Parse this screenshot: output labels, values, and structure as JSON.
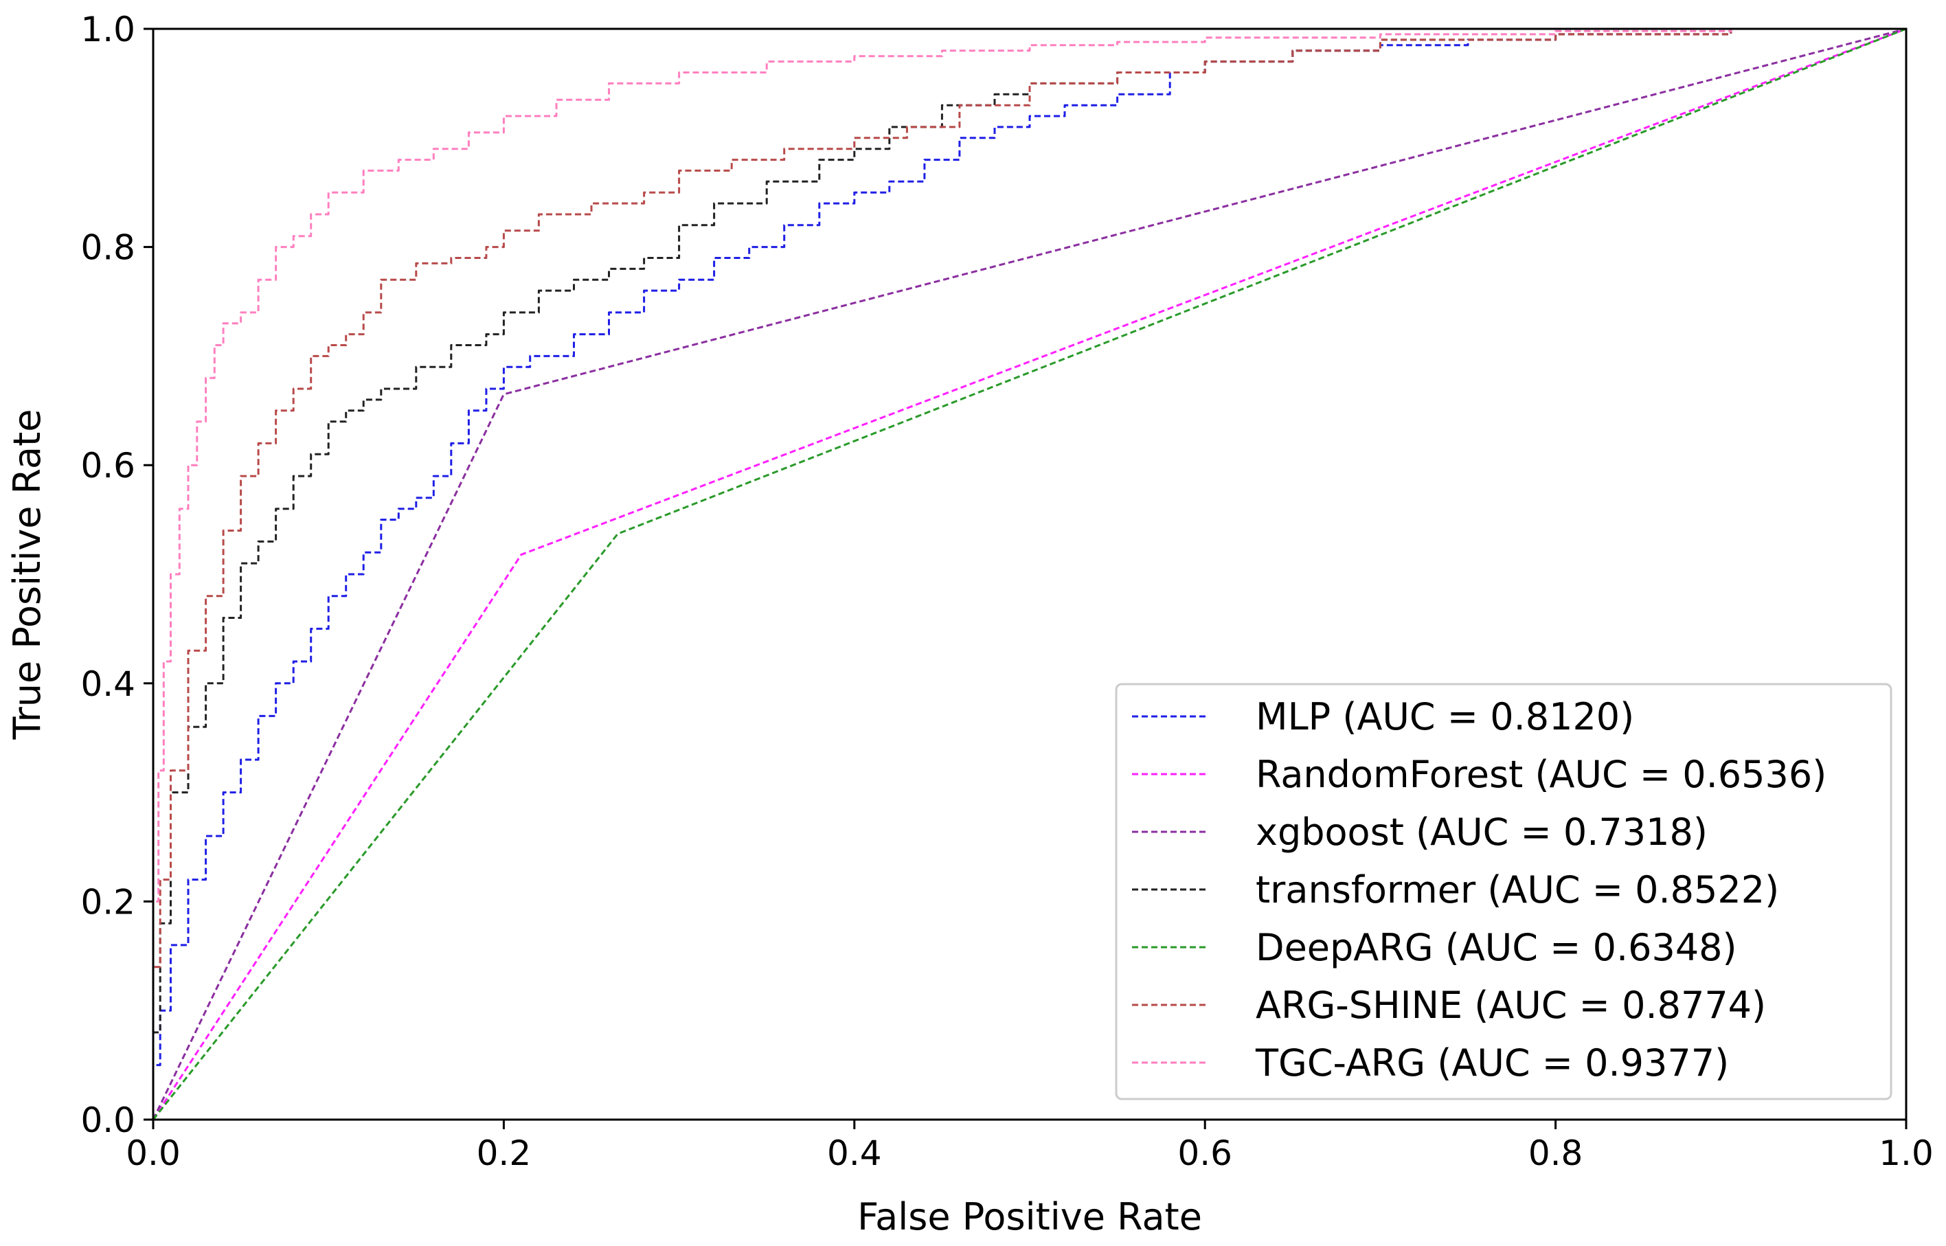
{
  "chart_data": {
    "type": "line",
    "title": "",
    "xlabel": "False Positive Rate",
    "ylabel": "True Positive Rate",
    "xlim": [
      0.0,
      1.0
    ],
    "ylim": [
      0.0,
      1.0
    ],
    "xticks": [
      0.0,
      0.2,
      0.4,
      0.6,
      0.8,
      1.0
    ],
    "yticks": [
      0.0,
      0.2,
      0.4,
      0.6,
      0.8,
      1.0
    ],
    "xtick_labels": [
      "0.0",
      "0.2",
      "0.4",
      "0.6",
      "0.8",
      "1.0"
    ],
    "ytick_labels": [
      "0.0",
      "0.2",
      "0.4",
      "0.6",
      "0.8",
      "1.0"
    ],
    "grid": false,
    "legend_position": "lower-right",
    "line_style": "dashed",
    "series": [
      {
        "name": "MLP",
        "label": "MLP (AUC  = 0.8120)",
        "auc": 0.812,
        "color": "#1f1fe6",
        "x": [
          0,
          0.004,
          0.01,
          0.02,
          0.03,
          0.04,
          0.05,
          0.06,
          0.07,
          0.08,
          0.09,
          0.1,
          0.11,
          0.12,
          0.13,
          0.14,
          0.15,
          0.16,
          0.17,
          0.18,
          0.19,
          0.2,
          0.215,
          0.24,
          0.26,
          0.28,
          0.3,
          0.32,
          0.34,
          0.36,
          0.38,
          0.4,
          0.42,
          0.44,
          0.46,
          0.48,
          0.5,
          0.52,
          0.55,
          0.58,
          0.6,
          0.65,
          0.7,
          0.75,
          0.8,
          0.9,
          1.0
        ],
        "y": [
          0,
          0.05,
          0.1,
          0.16,
          0.22,
          0.26,
          0.3,
          0.33,
          0.37,
          0.4,
          0.42,
          0.45,
          0.48,
          0.5,
          0.52,
          0.55,
          0.56,
          0.57,
          0.59,
          0.62,
          0.65,
          0.67,
          0.69,
          0.7,
          0.72,
          0.74,
          0.76,
          0.77,
          0.79,
          0.8,
          0.82,
          0.84,
          0.85,
          0.86,
          0.88,
          0.9,
          0.91,
          0.92,
          0.93,
          0.94,
          0.96,
          0.97,
          0.98,
          0.985,
          0.99,
          0.995,
          1.0
        ]
      },
      {
        "name": "RandomForest",
        "label": "RandomForest (AUC  = 0.6536)",
        "auc": 0.6536,
        "color": "#ff22ff",
        "x": [
          0,
          0.21,
          1.0
        ],
        "y": [
          0,
          0.518,
          1.0
        ]
      },
      {
        "name": "xgboost",
        "label": "xgboost (AUC  = 0.7318)",
        "auc": 0.7318,
        "color": "#8b2fa0",
        "x": [
          0,
          0.2,
          1.0
        ],
        "y": [
          0,
          0.665,
          1.0
        ]
      },
      {
        "name": "transformer",
        "label": "transformer (AUC  = 0.8522)",
        "auc": 0.8522,
        "color": "#222222",
        "x": [
          0,
          0.004,
          0.01,
          0.02,
          0.03,
          0.04,
          0.05,
          0.06,
          0.07,
          0.08,
          0.09,
          0.1,
          0.11,
          0.12,
          0.13,
          0.15,
          0.17,
          0.19,
          0.2,
          0.22,
          0.24,
          0.26,
          0.28,
          0.3,
          0.32,
          0.35,
          0.38,
          0.4,
          0.42,
          0.45,
          0.48,
          0.5,
          0.55,
          0.6,
          0.65,
          0.7,
          0.8,
          0.9,
          1.0
        ],
        "y": [
          0,
          0.08,
          0.18,
          0.3,
          0.36,
          0.4,
          0.46,
          0.51,
          0.53,
          0.56,
          0.59,
          0.61,
          0.64,
          0.65,
          0.66,
          0.67,
          0.69,
          0.71,
          0.72,
          0.74,
          0.76,
          0.77,
          0.78,
          0.79,
          0.82,
          0.84,
          0.86,
          0.88,
          0.89,
          0.91,
          0.93,
          0.94,
          0.95,
          0.96,
          0.97,
          0.98,
          0.99,
          0.995,
          1.0
        ]
      },
      {
        "name": "DeepARG",
        "label": "DeepARG (AUC  = 0.6348)",
        "auc": 0.6348,
        "color": "#2a9a2a",
        "x": [
          0,
          0.265,
          1.0
        ],
        "y": [
          0,
          0.537,
          1.0
        ]
      },
      {
        "name": "ARG-SHINE",
        "label": "ARG-SHINE (AUC  = 0.8774)",
        "auc": 0.8774,
        "color": "#b84a4a",
        "x": [
          0,
          0.004,
          0.01,
          0.02,
          0.03,
          0.04,
          0.05,
          0.06,
          0.07,
          0.08,
          0.09,
          0.1,
          0.11,
          0.12,
          0.13,
          0.15,
          0.17,
          0.19,
          0.2,
          0.22,
          0.25,
          0.28,
          0.3,
          0.33,
          0.36,
          0.4,
          0.43,
          0.46,
          0.5,
          0.55,
          0.6,
          0.65,
          0.7,
          0.8,
          0.9,
          1.0
        ],
        "y": [
          0,
          0.14,
          0.22,
          0.32,
          0.43,
          0.48,
          0.54,
          0.59,
          0.62,
          0.65,
          0.67,
          0.7,
          0.71,
          0.72,
          0.74,
          0.77,
          0.785,
          0.79,
          0.8,
          0.815,
          0.83,
          0.84,
          0.85,
          0.87,
          0.88,
          0.89,
          0.9,
          0.91,
          0.93,
          0.95,
          0.96,
          0.97,
          0.98,
          0.99,
          0.995,
          1.0
        ]
      },
      {
        "name": "TGC-ARG",
        "label": "TGC-ARG (AUC  = 0.9377)",
        "auc": 0.9377,
        "color": "#ff7fbf",
        "x": [
          0,
          0.003,
          0.006,
          0.01,
          0.015,
          0.02,
          0.025,
          0.03,
          0.035,
          0.04,
          0.05,
          0.06,
          0.07,
          0.08,
          0.09,
          0.1,
          0.12,
          0.14,
          0.16,
          0.18,
          0.2,
          0.23,
          0.26,
          0.3,
          0.35,
          0.4,
          0.45,
          0.5,
          0.55,
          0.6,
          0.7,
          0.8,
          0.9,
          1.0
        ],
        "y": [
          0,
          0.2,
          0.32,
          0.42,
          0.5,
          0.56,
          0.6,
          0.64,
          0.68,
          0.71,
          0.73,
          0.74,
          0.77,
          0.8,
          0.81,
          0.83,
          0.85,
          0.87,
          0.88,
          0.89,
          0.905,
          0.92,
          0.935,
          0.95,
          0.96,
          0.97,
          0.975,
          0.98,
          0.985,
          0.988,
          0.992,
          0.995,
          0.998,
          1.0
        ]
      }
    ]
  }
}
